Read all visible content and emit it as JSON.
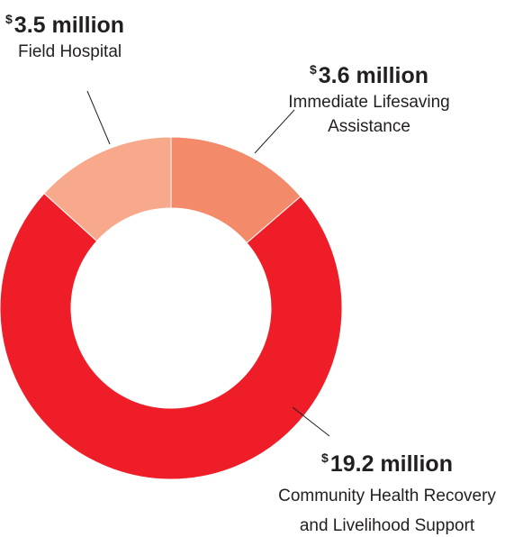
{
  "chart_data": {
    "type": "pie",
    "variant": "donut",
    "currency_symbol": "$",
    "slices": [
      {
        "key": "ila",
        "amount_label": "3.6 million",
        "label_lines": [
          "Immediate Lifesaving",
          "Assistance"
        ],
        "value": 3.6,
        "color": "#f38a6a"
      },
      {
        "key": "chr",
        "amount_label": "19.2 million",
        "label_lines": [
          "Community Health Recovery",
          "and Livelihood Support"
        ],
        "value": 19.2,
        "color": "#ee1d27"
      },
      {
        "key": "field",
        "amount_label": "3.5 million",
        "label_lines": [
          "Field Hospital"
        ],
        "value": 3.5,
        "color": "#f8a98c"
      }
    ]
  }
}
